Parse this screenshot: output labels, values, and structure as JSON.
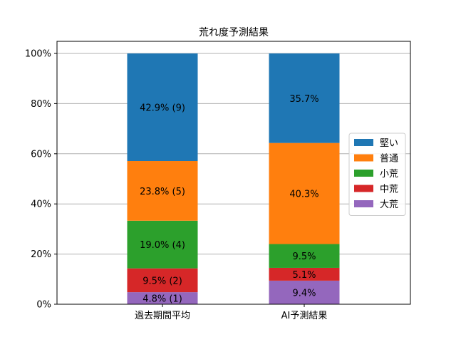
{
  "chart_data": {
    "type": "bar",
    "stacked": true,
    "title": "荒れ度予測結果",
    "categories": [
      "過去期間平均",
      "AI予測結果"
    ],
    "ylim": [
      0,
      100
    ],
    "y_ticks": [
      "0%",
      "20%",
      "40%",
      "60%",
      "80%",
      "100%"
    ],
    "grid": true,
    "legend_position": "right",
    "series": [
      {
        "name": "大荒",
        "color": "#9467bd",
        "values": [
          4.8,
          9.4
        ],
        "labels": [
          "4.8% (1)",
          "9.4%"
        ]
      },
      {
        "name": "中荒",
        "color": "#d62728",
        "values": [
          9.5,
          5.1
        ],
        "labels": [
          "9.5% (2)",
          "5.1%"
        ]
      },
      {
        "name": "小荒",
        "color": "#2ca02c",
        "values": [
          19.0,
          9.5
        ],
        "labels": [
          "19.0% (4)",
          "9.5%"
        ]
      },
      {
        "name": "普通",
        "color": "#ff7f0e",
        "values": [
          23.8,
          40.3
        ],
        "labels": [
          "23.8% (5)",
          "40.3%"
        ]
      },
      {
        "name": "堅い",
        "color": "#1f77b4",
        "values": [
          42.9,
          35.7
        ],
        "labels": [
          "42.9% (9)",
          "35.7%"
        ]
      }
    ],
    "legend_order": [
      "堅い",
      "普通",
      "小荒",
      "中荒",
      "大荒"
    ]
  }
}
